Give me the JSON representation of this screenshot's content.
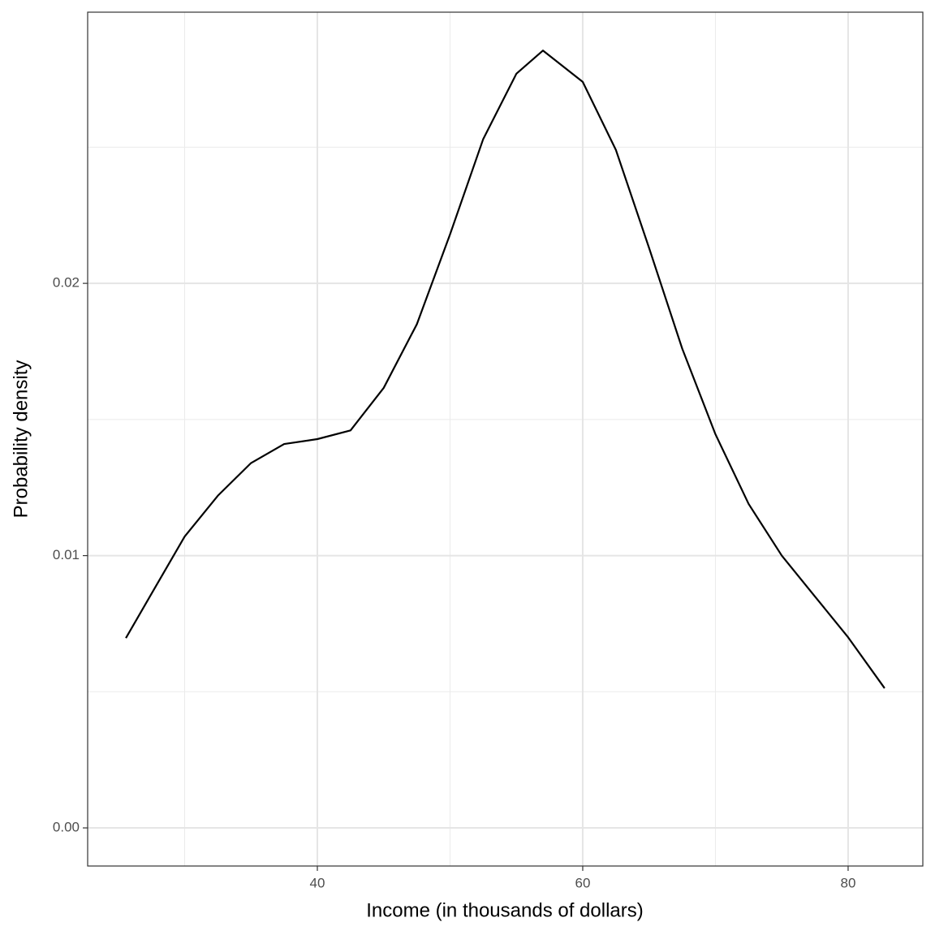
{
  "chart_data": {
    "type": "line",
    "x_label": "Income (in thousands of dollars)",
    "y_label": "Probability density",
    "x": [
      25.57,
      27.5,
      30,
      32.5,
      35,
      37.5,
      40,
      42.5,
      45,
      47.5,
      50,
      52.5,
      55,
      57,
      60,
      62.5,
      65,
      67.5,
      70,
      72.5,
      75,
      77.5,
      80,
      82.75
    ],
    "series": [
      {
        "color": "#000000",
        "values": [
          0.00697,
          0.0086,
          0.0107,
          0.0122,
          0.0134,
          0.0141,
          0.01428,
          0.0146,
          0.01616,
          0.0185,
          0.0218,
          0.0253,
          0.0277,
          0.02855,
          0.0274,
          0.0249,
          0.0213,
          0.0176,
          0.01446,
          0.0119,
          0.01,
          0.0085,
          0.007,
          0.00513
        ]
      }
    ],
    "xlim": [
      22.69,
      85.63
    ],
    "ylim": [
      -0.0014,
      0.02996
    ],
    "xticks": [
      40,
      60,
      80
    ],
    "yticks": [
      {
        "value": 0,
        "label": "0.00"
      },
      {
        "value": 0.01,
        "label": "0.01"
      },
      {
        "value": 0.02,
        "label": "0.02"
      }
    ],
    "minor_xgrid": [
      30,
      50,
      70
    ],
    "minor_ygrid": [
      0.005,
      0.015,
      0.025
    ],
    "grid": true
  }
}
